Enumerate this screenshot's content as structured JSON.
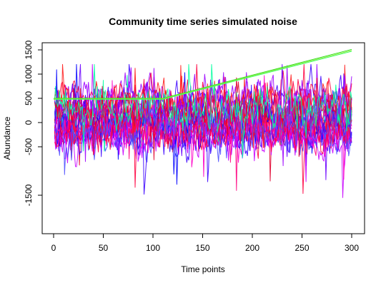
{
  "chart_data": {
    "type": "line",
    "title": "Community time series simulated noise",
    "xlabel": "Time points",
    "ylabel": "Abundance",
    "xlim": [
      0,
      300
    ],
    "ylim": [
      -1600,
      1650
    ],
    "x_ticks": [
      0,
      50,
      100,
      150,
      200,
      250,
      300
    ],
    "x_tick_labels": [
      "0",
      "50",
      "100",
      "150",
      "200",
      "250",
      "300"
    ],
    "y_ticks": [
      -1500,
      -500,
      0,
      500,
      1000,
      1500
    ],
    "y_tick_labels": [
      "-1500",
      "-500",
      "0",
      "500",
      "1000",
      "1500"
    ],
    "grid": false,
    "legend": false,
    "series_count": 24,
    "palette": [
      "#0000FF",
      "#3A00FF",
      "#6A00FF",
      "#9C00FF",
      "#C800FF",
      "#FF00C8",
      "#FF0080",
      "#FF0040",
      "#FF1A1A",
      "#E0002E",
      "#4C4CFF",
      "#00FFA0"
    ],
    "noise_series": {
      "x_start": 1,
      "x_end": 300,
      "level_min": -300,
      "level_max": 500,
      "amplitude": 350,
      "spike_min": -1550,
      "spike_max": 1200
    },
    "trend_series": [
      {
        "color": "#33DD22",
        "x": [
          0,
          110,
          300
        ],
        "y": [
          500,
          500,
          1510
        ]
      },
      {
        "color": "#88EE33",
        "x": [
          0,
          110,
          300
        ],
        "y": [
          490,
          490,
          1490
        ]
      },
      {
        "color": "#44FF66",
        "x": [
          0,
          110,
          300
        ],
        "y": [
          480,
          480,
          1470
        ]
      }
    ]
  }
}
